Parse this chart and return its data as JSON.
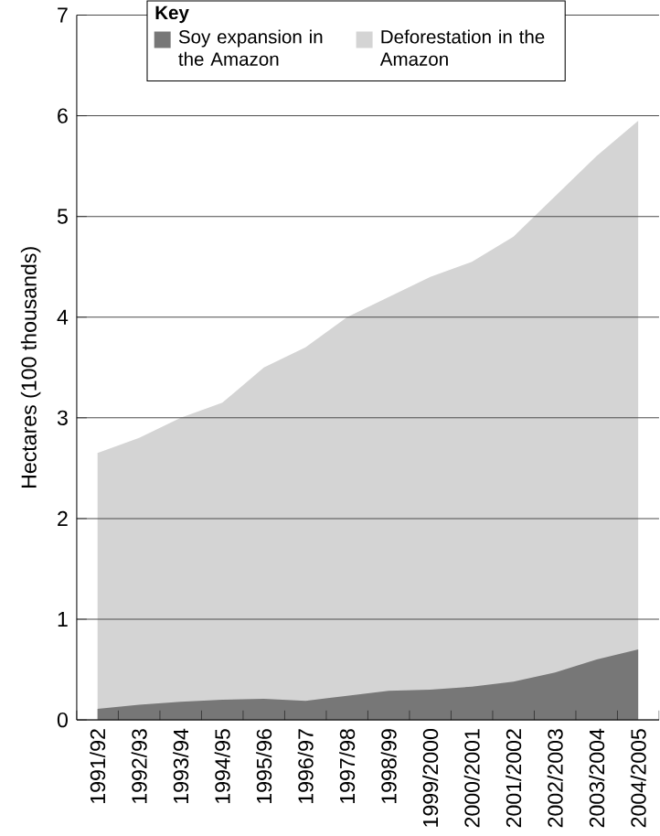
{
  "chart_data": {
    "type": "area",
    "ylabel": "Hectares (100 thousands)",
    "legend_title": "Key",
    "categories": [
      "1991/92",
      "1992/93",
      "1993/94",
      "1994/95",
      "1995/96",
      "1996/97",
      "1997/98",
      "1998/99",
      "1999/2000",
      "2000/2001",
      "2001/2002",
      "2002/2003",
      "2003/2004",
      "2004/2005"
    ],
    "series": [
      {
        "name": "Deforestation in the Amazon",
        "color": "#d4d4d4",
        "values": [
          2.65,
          2.8,
          3.0,
          3.15,
          3.5,
          3.7,
          4.0,
          4.2,
          4.4,
          4.55,
          4.8,
          5.2,
          5.6,
          5.95
        ]
      },
      {
        "name": "Soy expansion in the Amazon",
        "color": "#777777",
        "values": [
          0.11,
          0.15,
          0.18,
          0.2,
          0.21,
          0.19,
          0.24,
          0.29,
          0.3,
          0.33,
          0.38,
          0.47,
          0.6,
          0.7
        ]
      }
    ],
    "ylim": [
      0,
      7
    ],
    "yticks": [
      0,
      1,
      2,
      3,
      4,
      5,
      6,
      7
    ],
    "grid": "y",
    "legend": "top"
  }
}
